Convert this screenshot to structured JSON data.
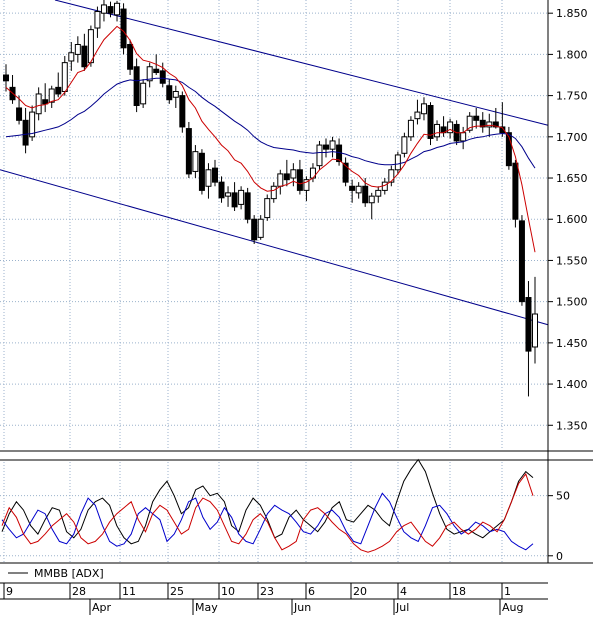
{
  "chart_data": [
    {
      "type": "candlestick",
      "yticks": [
        "1.850",
        "1.800",
        "1.750",
        "1.700",
        "1.650",
        "1.600",
        "1.550",
        "1.500",
        "1.450",
        "1.400",
        "1.350"
      ],
      "ytick_values": [
        1850,
        1800,
        1750,
        1700,
        1650,
        1600,
        1550,
        1500,
        1450,
        1400,
        1350
      ],
      "ylim": [
        1320,
        1866
      ],
      "x_tick_labels": [
        "9",
        "28",
        "11",
        "25",
        "10",
        "23",
        "6",
        "20",
        "4",
        "18",
        "1"
      ],
      "x_month_labels": [
        "Apr",
        "May",
        "Jun",
        "Jul",
        "Aug"
      ],
      "colors": {
        "candle": "#000000",
        "channel": "#00008b",
        "ema_short": "#cc0000",
        "ema_long": "#00008b",
        "gridline": "#9bb2cc",
        "background": "#ffffff"
      },
      "candles": [
        {
          "o": 1775,
          "h": 1788,
          "l": 1755,
          "c": 1768
        },
        {
          "o": 1760,
          "h": 1775,
          "l": 1740,
          "c": 1745
        },
        {
          "o": 1735,
          "h": 1750,
          "l": 1715,
          "c": 1720
        },
        {
          "o": 1720,
          "h": 1735,
          "l": 1680,
          "c": 1690
        },
        {
          "o": 1700,
          "h": 1738,
          "l": 1695,
          "c": 1730
        },
        {
          "o": 1728,
          "h": 1760,
          "l": 1720,
          "c": 1752
        },
        {
          "o": 1745,
          "h": 1765,
          "l": 1730,
          "c": 1740
        },
        {
          "o": 1742,
          "h": 1762,
          "l": 1735,
          "c": 1758
        },
        {
          "o": 1760,
          "h": 1778,
          "l": 1748,
          "c": 1752
        },
        {
          "o": 1755,
          "h": 1798,
          "l": 1750,
          "c": 1790
        },
        {
          "o": 1792,
          "h": 1815,
          "l": 1780,
          "c": 1802
        },
        {
          "o": 1800,
          "h": 1822,
          "l": 1790,
          "c": 1812
        },
        {
          "o": 1810,
          "h": 1825,
          "l": 1780,
          "c": 1785
        },
        {
          "o": 1790,
          "h": 1835,
          "l": 1785,
          "c": 1830
        },
        {
          "o": 1832,
          "h": 1858,
          "l": 1820,
          "c": 1852
        },
        {
          "o": 1850,
          "h": 1866,
          "l": 1840,
          "c": 1860
        },
        {
          "o": 1858,
          "h": 1864,
          "l": 1845,
          "c": 1850
        },
        {
          "o": 1848,
          "h": 1865,
          "l": 1840,
          "c": 1862
        },
        {
          "o": 1855,
          "h": 1862,
          "l": 1800,
          "c": 1808
        },
        {
          "o": 1812,
          "h": 1818,
          "l": 1775,
          "c": 1782
        },
        {
          "o": 1785,
          "h": 1795,
          "l": 1730,
          "c": 1738
        },
        {
          "o": 1740,
          "h": 1770,
          "l": 1735,
          "c": 1765
        },
        {
          "o": 1768,
          "h": 1790,
          "l": 1760,
          "c": 1785
        },
        {
          "o": 1782,
          "h": 1800,
          "l": 1775,
          "c": 1778
        },
        {
          "o": 1780,
          "h": 1790,
          "l": 1760,
          "c": 1765
        },
        {
          "o": 1762,
          "h": 1770,
          "l": 1740,
          "c": 1745
        },
        {
          "o": 1748,
          "h": 1762,
          "l": 1735,
          "c": 1755
        },
        {
          "o": 1750,
          "h": 1755,
          "l": 1705,
          "c": 1712
        },
        {
          "o": 1710,
          "h": 1718,
          "l": 1650,
          "c": 1655
        },
        {
          "o": 1658,
          "h": 1690,
          "l": 1650,
          "c": 1682
        },
        {
          "o": 1680,
          "h": 1685,
          "l": 1630,
          "c": 1635
        },
        {
          "o": 1640,
          "h": 1668,
          "l": 1625,
          "c": 1660
        },
        {
          "o": 1662,
          "h": 1672,
          "l": 1640,
          "c": 1645
        },
        {
          "o": 1645,
          "h": 1652,
          "l": 1620,
          "c": 1626
        },
        {
          "o": 1628,
          "h": 1640,
          "l": 1615,
          "c": 1632
        },
        {
          "o": 1632,
          "h": 1645,
          "l": 1610,
          "c": 1615
        },
        {
          "o": 1618,
          "h": 1640,
          "l": 1612,
          "c": 1635
        },
        {
          "o": 1632,
          "h": 1638,
          "l": 1595,
          "c": 1600
        },
        {
          "o": 1600,
          "h": 1605,
          "l": 1570,
          "c": 1575
        },
        {
          "o": 1578,
          "h": 1605,
          "l": 1575,
          "c": 1600
        },
        {
          "o": 1602,
          "h": 1630,
          "l": 1598,
          "c": 1625
        },
        {
          "o": 1625,
          "h": 1645,
          "l": 1620,
          "c": 1640
        },
        {
          "o": 1640,
          "h": 1660,
          "l": 1630,
          "c": 1655
        },
        {
          "o": 1655,
          "h": 1672,
          "l": 1640,
          "c": 1648
        },
        {
          "o": 1650,
          "h": 1668,
          "l": 1640,
          "c": 1660
        },
        {
          "o": 1660,
          "h": 1672,
          "l": 1630,
          "c": 1635
        },
        {
          "o": 1635,
          "h": 1652,
          "l": 1622,
          "c": 1648
        },
        {
          "o": 1650,
          "h": 1668,
          "l": 1645,
          "c": 1662
        },
        {
          "o": 1665,
          "h": 1695,
          "l": 1660,
          "c": 1690
        },
        {
          "o": 1690,
          "h": 1698,
          "l": 1675,
          "c": 1685
        },
        {
          "o": 1685,
          "h": 1700,
          "l": 1675,
          "c": 1695
        },
        {
          "o": 1690,
          "h": 1698,
          "l": 1665,
          "c": 1670
        },
        {
          "o": 1668,
          "h": 1675,
          "l": 1640,
          "c": 1645
        },
        {
          "o": 1640,
          "h": 1648,
          "l": 1620,
          "c": 1635
        },
        {
          "o": 1632,
          "h": 1645,
          "l": 1625,
          "c": 1640
        },
        {
          "o": 1640,
          "h": 1650,
          "l": 1615,
          "c": 1620
        },
        {
          "o": 1620,
          "h": 1632,
          "l": 1600,
          "c": 1628
        },
        {
          "o": 1628,
          "h": 1640,
          "l": 1620,
          "c": 1635
        },
        {
          "o": 1635,
          "h": 1650,
          "l": 1630,
          "c": 1645
        },
        {
          "o": 1645,
          "h": 1665,
          "l": 1640,
          "c": 1660
        },
        {
          "o": 1660,
          "h": 1682,
          "l": 1655,
          "c": 1678
        },
        {
          "o": 1680,
          "h": 1705,
          "l": 1675,
          "c": 1700
        },
        {
          "o": 1700,
          "h": 1725,
          "l": 1695,
          "c": 1720
        },
        {
          "o": 1722,
          "h": 1745,
          "l": 1715,
          "c": 1730
        },
        {
          "o": 1728,
          "h": 1748,
          "l": 1720,
          "c": 1740
        },
        {
          "o": 1738,
          "h": 1742,
          "l": 1690,
          "c": 1698
        },
        {
          "o": 1700,
          "h": 1720,
          "l": 1695,
          "c": 1715
        },
        {
          "o": 1712,
          "h": 1725,
          "l": 1700,
          "c": 1705
        },
        {
          "o": 1705,
          "h": 1722,
          "l": 1698,
          "c": 1718
        },
        {
          "o": 1715,
          "h": 1720,
          "l": 1690,
          "c": 1695
        },
        {
          "o": 1695,
          "h": 1712,
          "l": 1685,
          "c": 1705
        },
        {
          "o": 1708,
          "h": 1730,
          "l": 1705,
          "c": 1725
        },
        {
          "o": 1725,
          "h": 1735,
          "l": 1710,
          "c": 1720
        },
        {
          "o": 1720,
          "h": 1730,
          "l": 1705,
          "c": 1712
        },
        {
          "o": 1712,
          "h": 1728,
          "l": 1700,
          "c": 1718
        },
        {
          "o": 1718,
          "h": 1735,
          "l": 1710,
          "c": 1712
        },
        {
          "o": 1712,
          "h": 1742,
          "l": 1700,
          "c": 1705
        },
        {
          "o": 1705,
          "h": 1712,
          "l": 1660,
          "c": 1665
        },
        {
          "o": 1668,
          "h": 1672,
          "l": 1590,
          "c": 1600
        },
        {
          "o": 1598,
          "h": 1605,
          "l": 1495,
          "c": 1500
        },
        {
          "o": 1505,
          "h": 1525,
          "l": 1385,
          "c": 1440
        },
        {
          "o": 1445,
          "h": 1530,
          "l": 1425,
          "c": 1485
        }
      ],
      "ema_short": [
        1760,
        1753,
        1746,
        1738,
        1735,
        1738,
        1739,
        1743,
        1745,
        1754,
        1766,
        1778,
        1781,
        1791,
        1805,
        1818,
        1826,
        1834,
        1828,
        1817,
        1801,
        1793,
        1791,
        1788,
        1784,
        1777,
        1772,
        1762,
        1745,
        1735,
        1719,
        1709,
        1700,
        1690,
        1683,
        1672,
        1668,
        1658,
        1645,
        1638,
        1634,
        1635,
        1640,
        1642,
        1646,
        1643,
        1645,
        1650,
        1660,
        1666,
        1673,
        1672,
        1665,
        1658,
        1653,
        1644,
        1640,
        1639,
        1641,
        1646,
        1655,
        1666,
        1680,
        1692,
        1703,
        1702,
        1705,
        1705,
        1709,
        1705,
        1705,
        1711,
        1713,
        1713,
        1714,
        1713,
        1711,
        1700,
        1676,
        1642,
        1600,
        1560
      ],
      "ema_long": [
        1700,
        1701,
        1702,
        1703,
        1704,
        1706,
        1708,
        1710,
        1712,
        1716,
        1721,
        1727,
        1731,
        1737,
        1744,
        1752,
        1758,
        1764,
        1767,
        1769,
        1768,
        1769,
        1770,
        1771,
        1771,
        1770,
        1769,
        1766,
        1760,
        1755,
        1748,
        1742,
        1737,
        1731,
        1725,
        1719,
        1714,
        1708,
        1700,
        1694,
        1690,
        1687,
        1686,
        1685,
        1684,
        1682,
        1681,
        1680,
        1681,
        1681,
        1682,
        1681,
        1679,
        1676,
        1674,
        1671,
        1669,
        1667,
        1666,
        1666,
        1667,
        1669,
        1673,
        1677,
        1682,
        1684,
        1687,
        1689,
        1692,
        1693,
        1694,
        1697,
        1699,
        1700,
        1702,
        1703,
        1704,
        1703,
        1698,
        1688,
        1674,
        1662
      ]
    },
    {
      "type": "line",
      "legend": "MMBB [ADX]",
      "yticks": [
        "50",
        "0"
      ],
      "ylim": [
        -6,
        78
      ],
      "series": [
        {
          "color": "#000000",
          "values": [
            20,
            35,
            45,
            38,
            25,
            18,
            30,
            40,
            38,
            20,
            15,
            22,
            38,
            45,
            48,
            42,
            25,
            15,
            10,
            12,
            25,
            45,
            55,
            62,
            50,
            35,
            40,
            55,
            58,
            50,
            52,
            45,
            25,
            20,
            38,
            48,
            42,
            30,
            15,
            18,
            32,
            38,
            30,
            25,
            20,
            28,
            40,
            45,
            30,
            28,
            35,
            42,
            38,
            30,
            25,
            45,
            62,
            72,
            80,
            70,
            52,
            35,
            22,
            18,
            20,
            22,
            18,
            15,
            20,
            25,
            30,
            45,
            62,
            70,
            65
          ]
        },
        {
          "color": "#0000cc",
          "values": [
            30,
            22,
            15,
            18,
            28,
            38,
            35,
            22,
            12,
            10,
            18,
            35,
            48,
            42,
            25,
            12,
            8,
            10,
            18,
            35,
            40,
            35,
            30,
            12,
            18,
            30,
            45,
            48,
            32,
            22,
            28,
            40,
            32,
            18,
            12,
            10,
            22,
            35,
            42,
            38,
            35,
            28,
            20,
            18,
            25,
            35,
            38,
            32,
            20,
            12,
            10,
            25,
            40,
            52,
            45,
            32,
            20,
            15,
            12,
            25,
            40,
            42,
            35,
            25,
            18,
            22,
            28,
            25,
            20,
            22,
            20,
            12,
            8,
            5,
            10
          ]
        },
        {
          "color": "#cc0000",
          "values": [
            25,
            40,
            32,
            18,
            10,
            12,
            18,
            25,
            30,
            35,
            28,
            15,
            10,
            12,
            18,
            28,
            35,
            40,
            45,
            30,
            20,
            35,
            42,
            38,
            28,
            18,
            22,
            40,
            48,
            45,
            38,
            25,
            12,
            10,
            18,
            30,
            35,
            28,
            15,
            5,
            8,
            12,
            30,
            38,
            40,
            35,
            28,
            22,
            18,
            10,
            5,
            3,
            5,
            8,
            12,
            20,
            25,
            28,
            20,
            12,
            8,
            15,
            25,
            28,
            22,
            18,
            22,
            28,
            25,
            20,
            30,
            45,
            60,
            68,
            50
          ]
        }
      ]
    }
  ]
}
